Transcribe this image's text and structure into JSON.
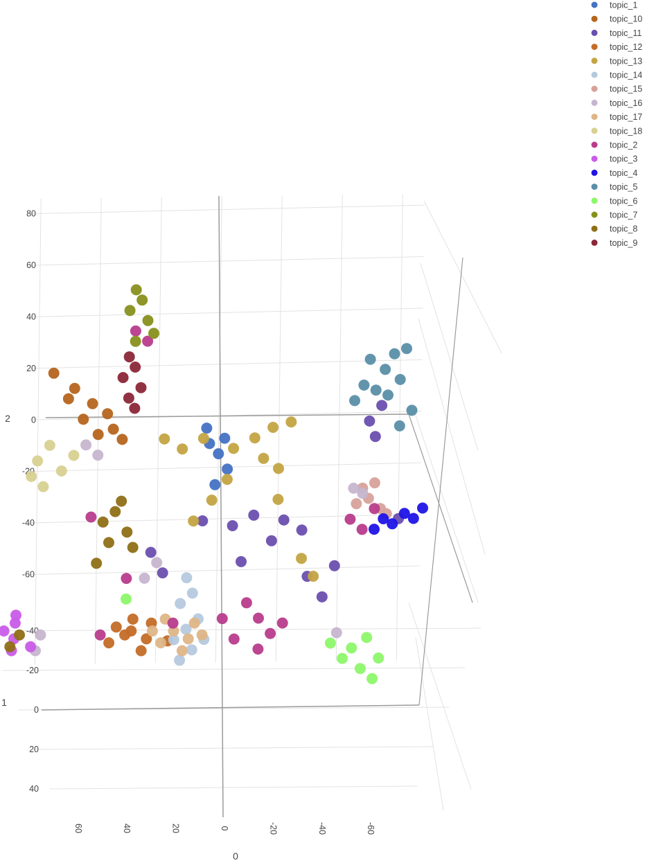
{
  "chart_data": {
    "type": "scatter",
    "subtype": "3d-scatter",
    "title": "",
    "axes": {
      "x": {
        "title": "0",
        "range": [
          -65,
          65
        ],
        "ticks": [
          60,
          40,
          20,
          0,
          -20,
          -40,
          -60
        ]
      },
      "y": {
        "title": "1",
        "range": [
          -45,
          50
        ],
        "ticks": [
          -40,
          -20,
          0,
          20,
          40
        ]
      },
      "z": {
        "title": "2",
        "range": [
          -75,
          85
        ],
        "ticks": [
          80,
          60,
          40,
          20,
          0,
          -20,
          -40,
          -60
        ]
      }
    },
    "grid": true,
    "legend": {
      "position": "top-right",
      "marker": "circle"
    },
    "series": [
      {
        "name": "topic_1",
        "color": "#4472C4",
        "points": [
          [
            0,
            0,
            -14
          ],
          [
            3,
            0,
            -10
          ],
          [
            -3,
            0,
            -20
          ],
          [
            1,
            0,
            -26
          ],
          [
            4,
            0,
            -4
          ],
          [
            -2,
            0,
            -8
          ]
        ]
      },
      {
        "name": "topic_10",
        "color": "#B5651D",
        "points": [
          [
            55,
            0,
            18
          ],
          [
            48,
            0,
            12
          ],
          [
            42,
            0,
            6
          ],
          [
            37,
            0,
            2
          ],
          [
            35,
            0,
            -4
          ],
          [
            45,
            0,
            0
          ],
          [
            50,
            0,
            8
          ],
          [
            40,
            0,
            -6
          ],
          [
            32,
            0,
            -8
          ]
        ]
      },
      {
        "name": "topic_11",
        "color": "#6A4FAF",
        "points": [
          [
            5,
            0,
            -40
          ],
          [
            -5,
            0,
            -42
          ],
          [
            -12,
            0,
            -38
          ],
          [
            -22,
            0,
            -40
          ],
          [
            -28,
            0,
            -44
          ],
          [
            -18,
            0,
            -48
          ],
          [
            -8,
            0,
            -56
          ],
          [
            -30,
            0,
            -62
          ],
          [
            -35,
            0,
            -70
          ],
          [
            -39,
            0,
            -58
          ],
          [
            -50,
            0,
            -2
          ],
          [
            -52,
            0,
            -8
          ],
          [
            -54,
            0,
            4
          ],
          [
            -60,
            0,
            -40
          ],
          [
            18,
            0,
            -60
          ],
          [
            22,
            0,
            -52
          ]
        ]
      },
      {
        "name": "topic_12",
        "color": "#C46B27",
        "points": [
          [
            30,
            -42,
            0
          ],
          [
            28,
            -38,
            0
          ],
          [
            25,
            -46,
            0
          ],
          [
            33,
            -34,
            0
          ],
          [
            20,
            -44,
            0
          ],
          [
            26,
            -40,
            0
          ],
          [
            22,
            -36,
            0
          ],
          [
            24,
            -30,
            0
          ],
          [
            16,
            -35,
            0
          ]
        ]
      },
      {
        "name": "topic_13",
        "color": "#C4A443",
        "points": [
          [
            -5,
            0,
            -12
          ],
          [
            -12,
            0,
            -8
          ],
          [
            -18,
            0,
            -4
          ],
          [
            -24,
            0,
            -2
          ],
          [
            -15,
            0,
            -16
          ],
          [
            -20,
            0,
            -20
          ],
          [
            5,
            0,
            -8
          ],
          [
            12,
            0,
            -12
          ],
          [
            18,
            0,
            -8
          ],
          [
            -3,
            0,
            -24
          ],
          [
            2,
            0,
            -32
          ],
          [
            8,
            0,
            -40
          ],
          [
            -28,
            0,
            -55
          ],
          [
            -32,
            0,
            -62
          ],
          [
            -20,
            0,
            -32
          ]
        ]
      },
      {
        "name": "topic_14",
        "color": "#B5C9DE",
        "points": [
          [
            10,
            0,
            -62
          ],
          [
            8,
            0,
            -68
          ],
          [
            12,
            0,
            -72
          ],
          [
            6,
            0,
            -78
          ],
          [
            10,
            0,
            -82
          ],
          [
            14,
            0,
            -86
          ],
          [
            8,
            0,
            -90
          ],
          [
            12,
            0,
            -94
          ],
          [
            4,
            0,
            -86
          ]
        ]
      },
      {
        "name": "topic_15",
        "color": "#D7A29A",
        "points": [
          [
            -50,
            0,
            -32
          ],
          [
            -48,
            0,
            -28
          ],
          [
            -54,
            0,
            -36
          ],
          [
            -46,
            0,
            -34
          ],
          [
            -52,
            0,
            -26
          ],
          [
            -56,
            0,
            -38
          ]
        ]
      },
      {
        "name": "topic_16",
        "color": "#C6B5CF",
        "points": [
          [
            44,
            0,
            -10
          ],
          [
            40,
            0,
            -14
          ],
          [
            -48,
            0,
            -30
          ],
          [
            -45,
            0,
            -28
          ],
          [
            -40,
            0,
            -84
          ],
          [
            20,
            0,
            -56
          ],
          [
            24,
            0,
            -62
          ],
          [
            52,
            -38,
            0
          ],
          [
            55,
            -30,
            0
          ]
        ]
      },
      {
        "name": "topic_17",
        "color": "#DEB587",
        "points": [
          [
            10,
            -36,
            0
          ],
          [
            14,
            -40,
            0
          ],
          [
            18,
            -34,
            0
          ],
          [
            12,
            -30,
            0
          ],
          [
            8,
            -44,
            0
          ],
          [
            16,
            -46,
            0
          ],
          [
            6,
            -38,
            0
          ],
          [
            20,
            -40,
            0
          ]
        ]
      },
      {
        "name": "topic_18",
        "color": "#D8D192",
        "points": [
          [
            60,
            0,
            -16
          ],
          [
            56,
            0,
            -10
          ],
          [
            52,
            0,
            -20
          ],
          [
            62,
            0,
            -22
          ],
          [
            48,
            0,
            -14
          ],
          [
            58,
            0,
            -26
          ]
        ]
      },
      {
        "name": "topic_2",
        "color": "#B83C8C",
        "points": [
          [
            -10,
            0,
            -72
          ],
          [
            -14,
            0,
            -78
          ],
          [
            -18,
            0,
            -84
          ],
          [
            -22,
            0,
            -80
          ],
          [
            -6,
            0,
            -86
          ],
          [
            -2,
            0,
            -78
          ],
          [
            -14,
            0,
            -90
          ],
          [
            -44,
            0,
            -40
          ],
          [
            -48,
            0,
            -44
          ],
          [
            -52,
            0,
            -36
          ],
          [
            28,
            0,
            34
          ],
          [
            24,
            0,
            30
          ],
          [
            42,
            0,
            -38
          ],
          [
            30,
            0,
            -62
          ],
          [
            35,
            -38,
            0
          ],
          [
            14,
            -44,
            0
          ]
        ]
      },
      {
        "name": "topic_3",
        "color": "#C95CE9",
        "points": [
          [
            62,
            -40,
            0
          ],
          [
            60,
            -36,
            0
          ],
          [
            58,
            -44,
            0
          ],
          [
            56,
            -32,
            0
          ],
          [
            62,
            -30,
            0
          ],
          [
            64,
            -46,
            0
          ],
          [
            57,
            -48,
            0
          ]
        ]
      },
      {
        "name": "topic_4",
        "color": "#1F14E6",
        "points": [
          [
            -65,
            0,
            -40
          ],
          [
            -62,
            0,
            -38
          ],
          [
            -58,
            0,
            -42
          ],
          [
            -55,
            0,
            -40
          ],
          [
            -68,
            0,
            -36
          ],
          [
            -52,
            0,
            -44
          ]
        ]
      },
      {
        "name": "topic_5",
        "color": "#5A8FA8",
        "points": [
          [
            -50,
            0,
            22
          ],
          [
            -55,
            0,
            18
          ],
          [
            -60,
            0,
            14
          ],
          [
            -48,
            0,
            12
          ],
          [
            -52,
            0,
            10
          ],
          [
            -58,
            0,
            24
          ],
          [
            -62,
            0,
            26
          ],
          [
            -45,
            0,
            6
          ],
          [
            -56,
            0,
            8
          ],
          [
            -64,
            0,
            2
          ],
          [
            -60,
            0,
            -4
          ]
        ]
      },
      {
        "name": "topic_6",
        "color": "#8DF76A",
        "points": [
          [
            -45,
            0,
            -90
          ],
          [
            -50,
            0,
            -86
          ],
          [
            -42,
            0,
            -94
          ],
          [
            -48,
            0,
            -98
          ],
          [
            -54,
            0,
            -94
          ],
          [
            -38,
            0,
            -88
          ],
          [
            -52,
            0,
            -102
          ],
          [
            30,
            0,
            -70
          ]
        ]
      },
      {
        "name": "topic_7",
        "color": "#88901D",
        "points": [
          [
            28,
            0,
            50
          ],
          [
            26,
            0,
            46
          ],
          [
            30,
            0,
            42
          ],
          [
            24,
            0,
            38
          ],
          [
            22,
            0,
            33
          ],
          [
            28,
            0,
            30
          ]
        ]
      },
      {
        "name": "topic_8",
        "color": "#8F6F16",
        "points": [
          [
            34,
            0,
            -36
          ],
          [
            38,
            0,
            -40
          ],
          [
            30,
            0,
            -44
          ],
          [
            36,
            0,
            -48
          ],
          [
            28,
            0,
            -50
          ],
          [
            32,
            0,
            -32
          ],
          [
            40,
            0,
            -56
          ],
          [
            62,
            -32,
            0
          ],
          [
            58,
            -38,
            0
          ]
        ]
      },
      {
        "name": "topic_9",
        "color": "#8B2738",
        "points": [
          [
            30,
            0,
            24
          ],
          [
            28,
            0,
            20
          ],
          [
            32,
            0,
            16
          ],
          [
            26,
            0,
            12
          ],
          [
            30,
            0,
            8
          ],
          [
            28,
            0,
            4
          ]
        ]
      }
    ]
  }
}
